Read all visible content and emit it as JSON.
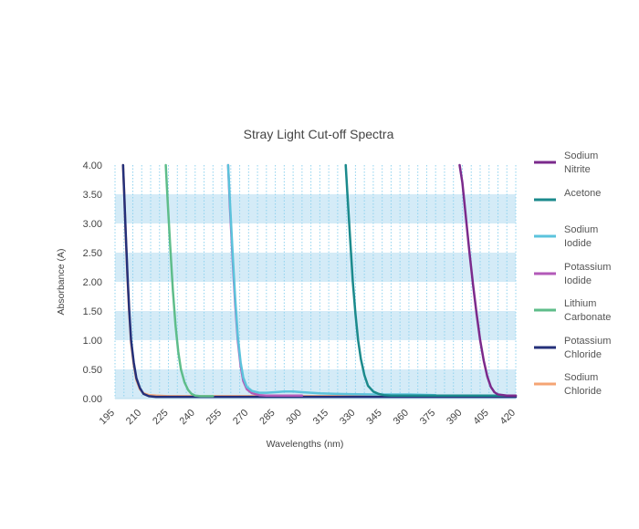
{
  "chart_data": {
    "type": "line",
    "title": "Stray Light Cut-off Spectra",
    "xlabel": "Wavelengths (nm)",
    "ylabel": "Absorbance (A)",
    "xlim": [
      195,
      420
    ],
    "ylim": [
      0,
      4
    ],
    "x_ticks": [
      195,
      210,
      225,
      240,
      255,
      270,
      285,
      300,
      315,
      330,
      345,
      360,
      375,
      390,
      405,
      420
    ],
    "y_ticks": [
      0,
      0.5,
      1,
      1.5,
      2,
      2.5,
      3,
      3.5,
      4
    ],
    "x_tick_labels": [
      "195",
      "210",
      "225",
      "240",
      "255",
      "270",
      "285",
      "300",
      "315",
      "330",
      "345",
      "360",
      "375",
      "390",
      "405",
      "420"
    ],
    "y_tick_labels": [
      "0.00",
      "0.50",
      "1.00",
      "1.50",
      "2.00",
      "2.50",
      "3.00",
      "3.50",
      "4.00"
    ],
    "grid": true,
    "legend_position": "right",
    "series": [
      {
        "name": "Sodium Nitrite",
        "color": "#7b2a8c",
        "x": [
          388.5,
          390,
          392,
          394,
          396,
          398,
          400,
          402,
          404,
          406,
          408,
          410,
          415,
          420
        ],
        "y": [
          4.0,
          3.7,
          3.1,
          2.5,
          1.95,
          1.45,
          1.0,
          0.65,
          0.38,
          0.2,
          0.11,
          0.07,
          0.05,
          0.05
        ]
      },
      {
        "name": "Acetone",
        "color": "#1b8a8c",
        "x": [
          324.5,
          325.5,
          327,
          328.5,
          330,
          331.5,
          333,
          335,
          337,
          340,
          343,
          346,
          350,
          360,
          380,
          400,
          420
        ],
        "y": [
          4.0,
          3.5,
          2.75,
          2.0,
          1.45,
          1.0,
          0.68,
          0.4,
          0.22,
          0.12,
          0.08,
          0.06,
          0.05,
          0.05,
          0.05,
          0.05,
          0.05
        ]
      },
      {
        "name": "Sodium Iodide",
        "color": "#5bc3dc",
        "x": [
          258.5,
          259.5,
          261,
          262.5,
          264,
          265.5,
          267,
          269,
          272,
          276,
          280,
          285,
          290,
          295,
          300,
          310,
          320,
          340,
          360,
          375
        ],
        "y": [
          4.0,
          3.4,
          2.5,
          1.7,
          1.05,
          0.62,
          0.36,
          0.2,
          0.13,
          0.1,
          0.1,
          0.11,
          0.12,
          0.12,
          0.11,
          0.09,
          0.08,
          0.07,
          0.07,
          0.06
        ]
      },
      {
        "name": "Potassium Iodide",
        "color": "#b35ab8",
        "x": [
          258.5,
          259.5,
          261,
          262.5,
          264,
          265.5,
          267,
          269,
          272,
          276,
          280,
          290,
          300
        ],
        "y": [
          4.0,
          3.3,
          2.4,
          1.6,
          0.98,
          0.56,
          0.3,
          0.16,
          0.09,
          0.06,
          0.05,
          0.05,
          0.05
        ]
      },
      {
        "name": "Lithium Carbonate",
        "color": "#5ebd8a",
        "x": [
          223.5,
          224.5,
          226,
          227.5,
          229,
          230.5,
          232,
          234,
          236,
          238,
          240,
          243,
          246,
          250
        ],
        "y": [
          4.0,
          3.4,
          2.6,
          1.85,
          1.25,
          0.8,
          0.5,
          0.28,
          0.15,
          0.08,
          0.05,
          0.04,
          0.04,
          0.04
        ]
      },
      {
        "name": "Potassium Chloride",
        "color": "#24307a",
        "x": [
          199.5,
          200.2,
          201,
          202,
          203,
          204,
          205.5,
          207,
          209,
          211,
          214,
          218,
          225,
          240,
          255,
          280,
          320,
          370,
          420
        ],
        "y": [
          4.0,
          3.5,
          2.85,
          2.1,
          1.5,
          1.0,
          0.62,
          0.35,
          0.18,
          0.08,
          0.04,
          0.03,
          0.03,
          0.03,
          0.03,
          0.03,
          0.03,
          0.03,
          0.03
        ]
      },
      {
        "name": "Sodium Chloride",
        "color": "#f5a474",
        "x": [
          199.5,
          200.2,
          201,
          202,
          203,
          204,
          205.5,
          207,
          209,
          211,
          214,
          218,
          225,
          240,
          260,
          300,
          350,
          400,
          405
        ],
        "y": [
          4.0,
          3.5,
          2.8,
          2.05,
          1.45,
          0.95,
          0.58,
          0.32,
          0.16,
          0.09,
          0.06,
          0.05,
          0.04,
          0.04,
          0.04,
          0.04,
          0.04,
          0.04,
          0.04
        ]
      }
    ],
    "legend_labels": [
      [
        "Sodium",
        "Nitrite"
      ],
      [
        "Acetone"
      ],
      [
        "Sodium",
        "Iodide"
      ],
      [
        "Potassium",
        "Iodide"
      ],
      [
        "Lithium",
        "Carbonate"
      ],
      [
        "Potassium",
        "Chloride"
      ],
      [
        "Sodium",
        "Chloride"
      ]
    ],
    "band_color": "#d4ebf7",
    "grid_color": "#8fd3ef"
  }
}
